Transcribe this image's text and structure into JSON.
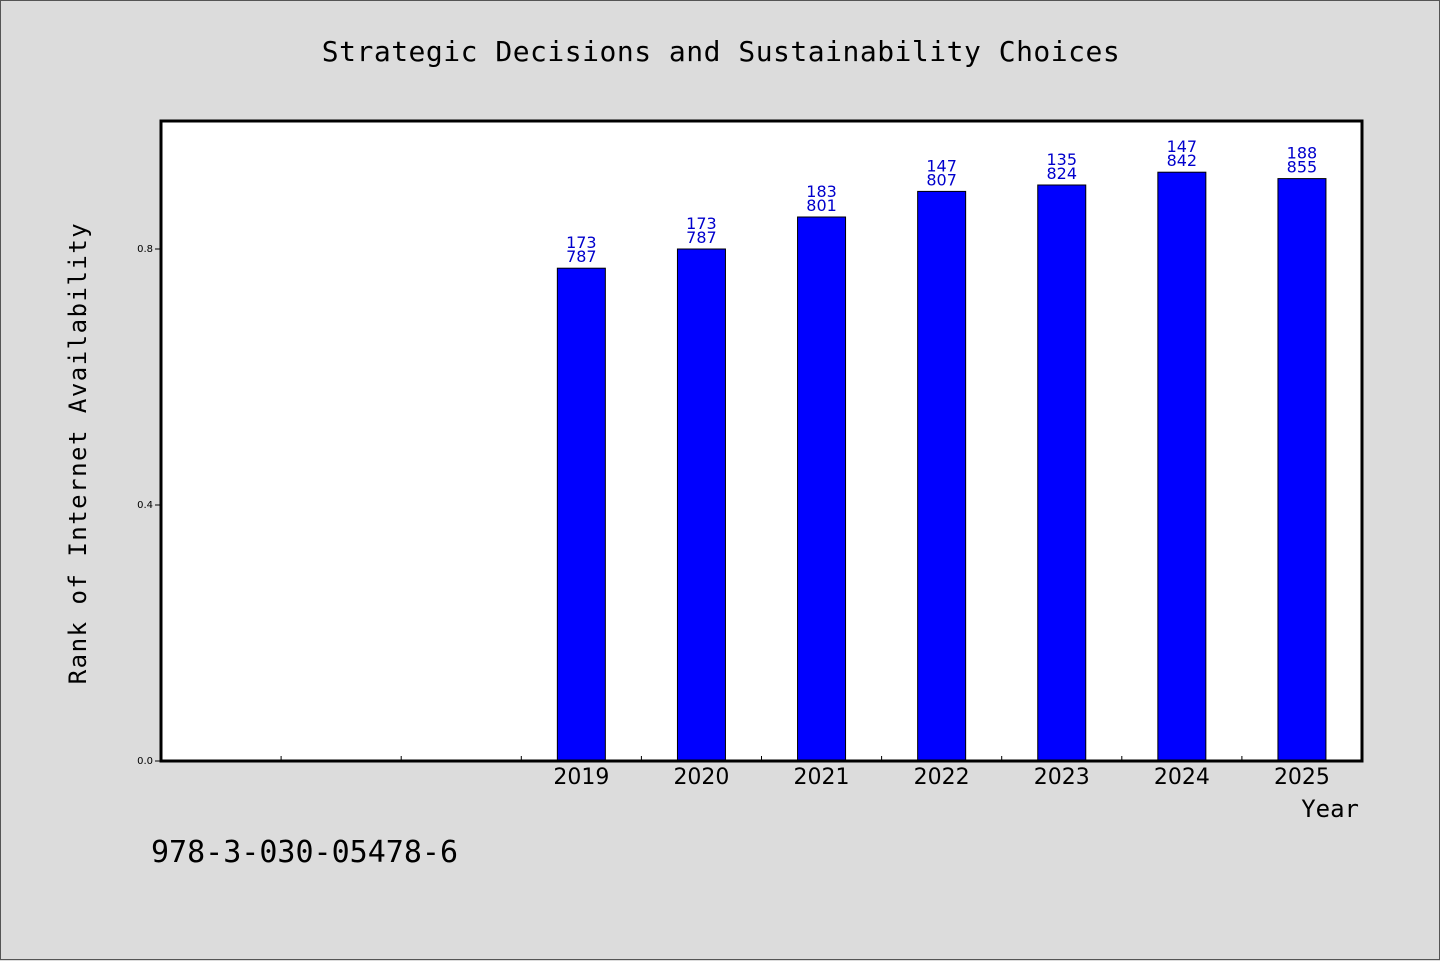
{
  "chart_data": {
    "type": "bar",
    "title": "Strategic Decisions and Sustainability Choices",
    "xlabel": "Year",
    "ylabel": "Rank of Internet Availability",
    "categories": [
      "",
      "",
      "",
      "2019",
      "2020",
      "2021",
      "2022",
      "2023",
      "2024",
      "2025"
    ],
    "values": [
      null,
      null,
      null,
      0.77,
      0.8,
      0.85,
      0.89,
      0.9,
      0.92,
      0.91
    ],
    "bar_labels": [
      null,
      null,
      null,
      [
        "173",
        "787"
      ],
      [
        "173",
        "787"
      ],
      [
        "183",
        "801"
      ],
      [
        "147",
        "807"
      ],
      [
        "135",
        "824"
      ],
      [
        "147",
        "842"
      ],
      [
        "188",
        "855"
      ]
    ],
    "ylim": [
      0,
      1.0
    ],
    "yticks": [
      {
        "value": 0.0,
        "label": "0.0"
      },
      {
        "value": 0.4,
        "label": "0.4"
      },
      {
        "value": 0.8,
        "label": "0.8"
      }
    ],
    "grid": false,
    "bar_color": "#0000ff",
    "label_color": "#0000cc"
  },
  "footer": {
    "isbn": "978-3-030-05478-6"
  }
}
